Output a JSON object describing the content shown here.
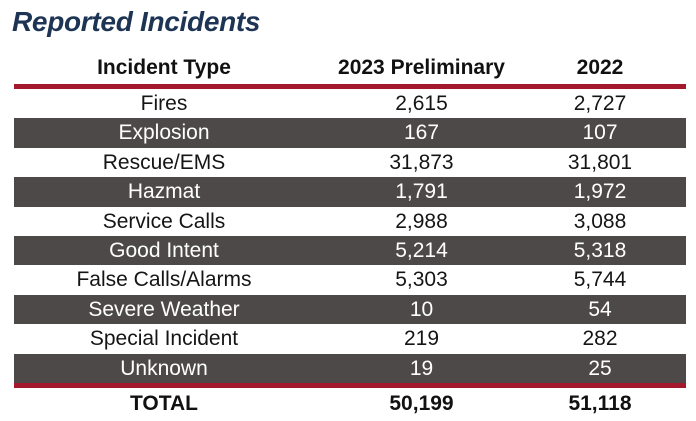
{
  "title": "Reported Incidents",
  "colors": {
    "title": "#1d3454",
    "rule": "#a3182a",
    "shaded_row": "#4d4949"
  },
  "headers": {
    "type": "Incident Type",
    "prelim": "2023 Preliminary",
    "prior": "2022"
  },
  "rows": [
    {
      "type": "Fires",
      "prelim": "2,615",
      "prior": "2,727"
    },
    {
      "type": "Explosion",
      "prelim": "167",
      "prior": "107"
    },
    {
      "type": "Rescue/EMS",
      "prelim": "31,873",
      "prior": "31,801"
    },
    {
      "type": "Hazmat",
      "prelim": "1,791",
      "prior": "1,972"
    },
    {
      "type": "Service Calls",
      "prelim": "2,988",
      "prior": "3,088"
    },
    {
      "type": "Good Intent",
      "prelim": "5,214",
      "prior": "5,318"
    },
    {
      "type": "False Calls/Alarms",
      "prelim": "5,303",
      "prior": "5,744"
    },
    {
      "type": "Severe Weather",
      "prelim": "10",
      "prior": "54"
    },
    {
      "type": "Special Incident",
      "prelim": "219",
      "prior": "282"
    },
    {
      "type": "Unknown",
      "prelim": "19",
      "prior": "25"
    }
  ],
  "total": {
    "label": "TOTAL",
    "prelim": "50,199",
    "prior": "51,118"
  }
}
